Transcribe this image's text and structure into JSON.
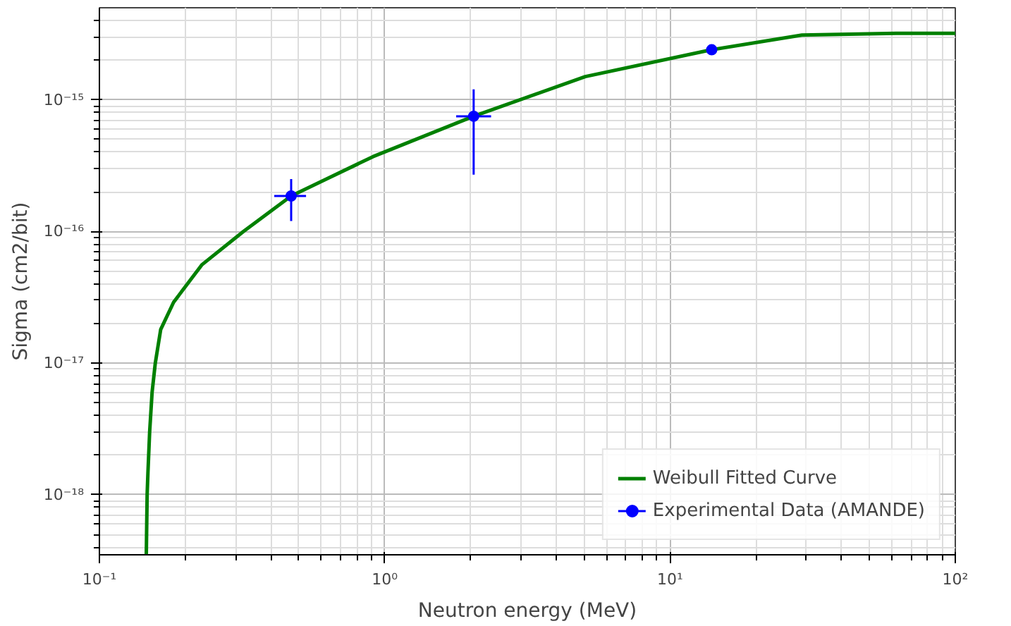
{
  "chart_data": {
    "type": "line",
    "xlabel": "Neutron energy (MeV)",
    "ylabel": "Sigma (cm2/bit)",
    "log": "xy",
    "grid": true,
    "legend": "bottom right",
    "xlim": [
      0.1,
      100
    ],
    "xticks": [
      {
        "value": 0.1,
        "label": "10⁻¹"
      },
      {
        "value": 1,
        "label": "10⁰"
      },
      {
        "value": 10,
        "label": "10¹"
      },
      {
        "value": 100,
        "label": "10²"
      }
    ],
    "ylim": [
      3.5e-19,
      5e-15
    ],
    "yticks": [
      {
        "value": 1e-18,
        "label": "10⁻¹⁸"
      },
      {
        "value": 1e-17,
        "label": "10⁻¹⁷"
      },
      {
        "value": 1e-16,
        "label": "10⁻¹⁶"
      },
      {
        "value": 1e-15,
        "label": "10⁻¹⁵"
      }
    ],
    "series": [
      {
        "name": "Weibull Fitted Curve",
        "color": "#008000",
        "line_style": "solid",
        "x": [
          0.146,
          0.147,
          0.148,
          0.15,
          0.153,
          0.157,
          0.164,
          0.182,
          0.229,
          0.32,
          0.47,
          0.91,
          2.05,
          5.05,
          14,
          29,
          62,
          100
        ],
        "values": [
          3.5e-19,
          1e-18,
          1.5e-18,
          3e-18,
          6e-18,
          1e-17,
          1.8e-17,
          2.9e-17,
          5.6e-17,
          1e-16,
          1.86e-16,
          3.7e-16,
          7.5e-16,
          1.5e-15,
          2.4e-15,
          3.1e-15,
          3.2e-15,
          3.2e-15
        ]
      },
      {
        "name": "Experimental Data (AMANDE)",
        "type": "scatter",
        "marker": "circle",
        "color": "#0000ff",
        "x": [
          0.47,
          2.05,
          14
        ],
        "values": [
          1.86e-16,
          7.5e-16,
          2.4e-15
        ],
        "errors": [
          [
            1.2e-16,
            2.5e-16
          ],
          [
            2.7e-16,
            1.2e-15
          ],
          null
        ],
        "xerrors": [
          [
            0.41,
            0.53
          ],
          [
            1.78,
            2.36
          ],
          null
        ]
      }
    ]
  }
}
